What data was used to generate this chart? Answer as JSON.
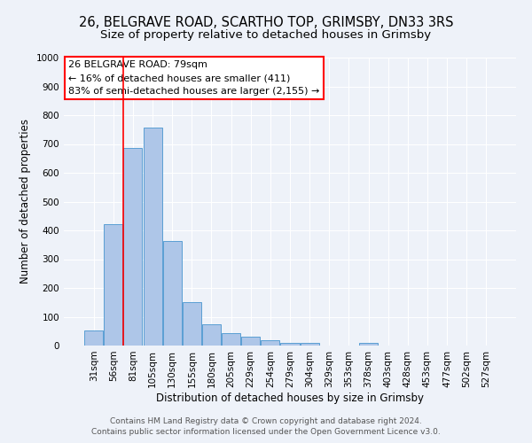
{
  "title": "26, BELGRAVE ROAD, SCARTHO TOP, GRIMSBY, DN33 3RS",
  "subtitle": "Size of property relative to detached houses in Grimsby",
  "xlabel": "Distribution of detached houses by size in Grimsby",
  "ylabel": "Number of detached properties",
  "bar_labels": [
    "31sqm",
    "56sqm",
    "81sqm",
    "105sqm",
    "130sqm",
    "155sqm",
    "180sqm",
    "205sqm",
    "229sqm",
    "254sqm",
    "279sqm",
    "304sqm",
    "329sqm",
    "353sqm",
    "378sqm",
    "403sqm",
    "428sqm",
    "453sqm",
    "477sqm",
    "502sqm",
    "527sqm"
  ],
  "bar_values": [
    52,
    422,
    685,
    757,
    362,
    152,
    75,
    42,
    30,
    18,
    10,
    8,
    0,
    0,
    8,
    0,
    0,
    0,
    0,
    0,
    0
  ],
  "bar_color": "#aec6e8",
  "bar_edgecolor": "#5a9fd4",
  "vline_color": "red",
  "vline_x_index": 2,
  "annotation_title": "26 BELGRAVE ROAD: 79sqm",
  "annotation_line1": "← 16% of detached houses are smaller (411)",
  "annotation_line2": "83% of semi-detached houses are larger (2,155) →",
  "annotation_box_facecolor": "#ffffff",
  "annotation_box_edgecolor": "red",
  "ylim": [
    0,
    1000
  ],
  "yticks": [
    0,
    100,
    200,
    300,
    400,
    500,
    600,
    700,
    800,
    900,
    1000
  ],
  "footer1": "Contains HM Land Registry data © Crown copyright and database right 2024.",
  "footer2": "Contains public sector information licensed under the Open Government Licence v3.0.",
  "background_color": "#eef2f9",
  "grid_color": "#ffffff",
  "title_fontsize": 10.5,
  "subtitle_fontsize": 9.5,
  "axis_label_fontsize": 8.5,
  "tick_fontsize": 7.5,
  "annotation_fontsize": 8,
  "footer_fontsize": 6.5
}
